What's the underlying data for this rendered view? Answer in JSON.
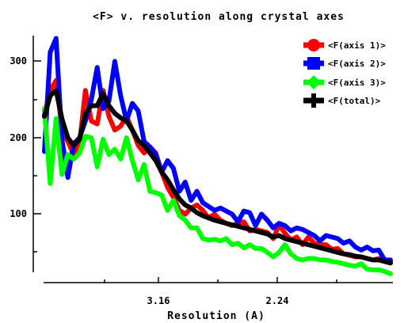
{
  "chart_data": {
    "type": "line",
    "title": "<F> v. resolution along crystal axes",
    "xlabel": "Resolution (A)",
    "ylabel": "",
    "x_tick_labels": [
      "3.16",
      "2.24"
    ],
    "y_tick_labels": [
      "100",
      "200",
      "300"
    ],
    "ylim": [
      20,
      335
    ],
    "legend_position": "top-right",
    "series": [
      {
        "name": "<F(axis 1)>",
        "color": "#ff0000",
        "values": [
          230,
          262,
          275,
          212,
          195,
          178,
          192,
          262,
          222,
          218,
          262,
          228,
          210,
          215,
          228,
          210,
          190,
          180,
          188,
          180,
          155,
          135,
          122,
          105,
          100,
          108,
          112,
          105,
          95,
          100,
          92,
          88,
          85,
          88,
          90,
          78,
          80,
          78,
          76,
          68,
          86,
          75,
          66,
          70,
          60,
          70,
          62,
          60,
          60,
          54,
          55,
          48,
          46,
          44,
          44,
          42,
          40,
          42,
          38,
          38
        ]
      },
      {
        "name": "<F(axis 2)>",
        "color": "#0000ff",
        "values": [
          182,
          312,
          330,
          198,
          148,
          192,
          200,
          222,
          250,
          292,
          238,
          248,
          300,
          255,
          222,
          245,
          235,
          195,
          188,
          178,
          155,
          170,
          160,
          130,
          142,
          118,
          130,
          115,
          110,
          105,
          108,
          104,
          100,
          90,
          104,
          102,
          85,
          100,
          92,
          82,
          88,
          85,
          78,
          82,
          80,
          76,
          72,
          65,
          72,
          70,
          68,
          62,
          65,
          57,
          53,
          57,
          52,
          53,
          40,
          40
        ]
      },
      {
        "name": "<F(axis 3)>",
        "color": "#00ff00",
        "values": [
          238,
          140,
          225,
          152,
          178,
          172,
          180,
          202,
          200,
          162,
          198,
          178,
          185,
          172,
          200,
          170,
          145,
          165,
          130,
          128,
          125,
          105,
          118,
          98,
          92,
          82,
          82,
          68,
          66,
          67,
          65,
          68,
          60,
          62,
          56,
          60,
          55,
          55,
          50,
          44,
          50,
          60,
          48,
          42,
          40,
          42,
          42,
          40,
          40,
          38,
          37,
          35,
          33,
          32,
          35,
          28,
          27,
          27,
          25,
          22
        ]
      },
      {
        "name": "<F(total)>",
        "color": "#000000",
        "values": [
          228,
          255,
          262,
          225,
          200,
          190,
          198,
          232,
          242,
          242,
          258,
          242,
          232,
          226,
          222,
          210,
          196,
          190,
          180,
          170,
          155,
          145,
          132,
          120,
          112,
          108,
          102,
          98,
          95,
          92,
          90,
          88,
          86,
          84,
          82,
          80,
          78,
          76,
          74,
          70,
          72,
          68,
          66,
          64,
          62,
          60,
          58,
          56,
          54,
          52,
          50,
          48,
          47,
          45,
          44,
          42,
          40,
          40,
          38,
          36
        ]
      }
    ]
  }
}
